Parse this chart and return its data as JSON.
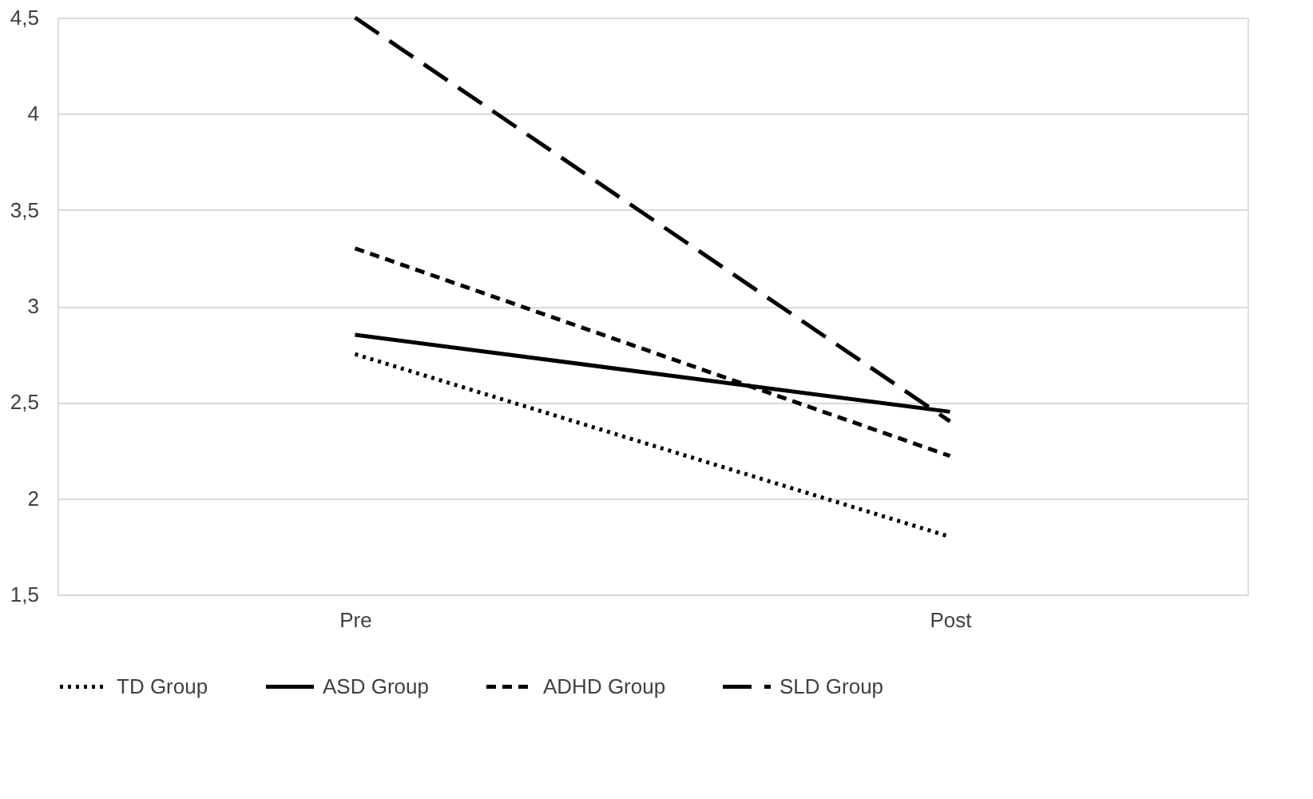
{
  "chart_data": {
    "type": "line",
    "categories": [
      "Pre",
      "Post"
    ],
    "series": [
      {
        "name": "TD Group",
        "color": "#000000",
        "line_style": "dotted",
        "values": [
          2.75,
          1.8
        ]
      },
      {
        "name": "ASD Group",
        "color": "#000000",
        "line_style": "solid",
        "values": [
          2.85,
          2.45
        ]
      },
      {
        "name": "ADHD Group",
        "color": "#000000",
        "line_style": "dashed",
        "values": [
          3.3,
          2.22
        ]
      },
      {
        "name": "SLD Group",
        "color": "#000000",
        "line_style": "dashed",
        "values": [
          4.5,
          2.4
        ]
      }
    ],
    "ylim": [
      1.5,
      4.5
    ],
    "yticks": [
      {
        "value": 1.5,
        "label": "1,5"
      },
      2,
      {
        "value": 2.5,
        "label": "2,5"
      },
      3,
      {
        "value": 3.5,
        "label": "3,5"
      },
      4,
      {
        "value": 4.5,
        "label": "4,5"
      }
    ],
    "grid": "y",
    "legend": "bottom",
    "marker": "none"
  }
}
